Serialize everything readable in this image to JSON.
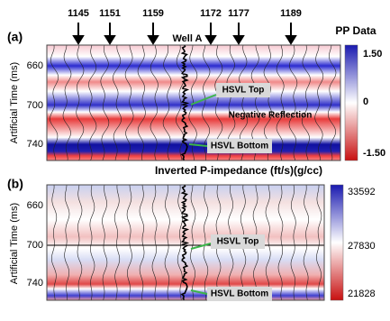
{
  "panels": [
    {
      "label": "(a)",
      "title": "PP Data",
      "well": "Well A",
      "trace_numbers": [
        "1145",
        "1151",
        "1159",
        "1172",
        "1177",
        "1189"
      ],
      "y_axis_label": "Artificial Time (ms)",
      "y_ticks": [
        "660",
        "700",
        "740"
      ],
      "colorbar_ticks": [
        "1.50",
        "0",
        "-1.50"
      ],
      "annotations": [
        "HSVL Top",
        "Negative Reflection",
        "HSVL Bottom"
      ]
    },
    {
      "label": "(b)",
      "title": "Inverted P-impedance (ft/s)(g/cc)",
      "y_axis_label": "Artificial Time (ms)",
      "y_ticks": [
        "660",
        "700",
        "740"
      ],
      "colorbar_ticks": [
        "33592",
        "27830",
        "21828"
      ],
      "annotations": [
        "HSVL Top",
        "HSVL Bottom"
      ]
    }
  ]
}
